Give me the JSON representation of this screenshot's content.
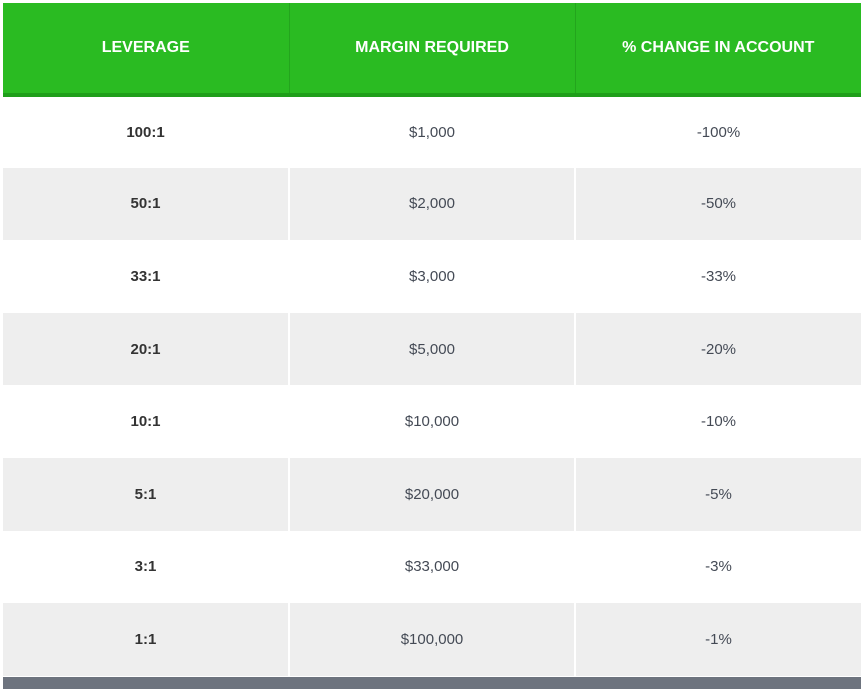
{
  "table": {
    "headers": [
      "LEVERAGE",
      "MARGIN REQUIRED",
      "% CHANGE IN ACCOUNT"
    ],
    "rows": [
      {
        "leverage": "100:1",
        "margin": "$1,000",
        "change": "-100%"
      },
      {
        "leverage": "50:1",
        "margin": "$2,000",
        "change": "-50%"
      },
      {
        "leverage": "33:1",
        "margin": "$3,000",
        "change": "-33%"
      },
      {
        "leverage": "20:1",
        "margin": "$5,000",
        "change": "-20%"
      },
      {
        "leverage": "10:1",
        "margin": "$10,000",
        "change": "-10%"
      },
      {
        "leverage": "5:1",
        "margin": "$20,000",
        "change": "-5%"
      },
      {
        "leverage": "3:1",
        "margin": "$33,000",
        "change": "-3%"
      },
      {
        "leverage": "1:1",
        "margin": "$100,000",
        "change": "-1%"
      }
    ]
  },
  "colors": {
    "header_bg": "#2abb22",
    "row_alt_bg": "#eeeeee",
    "footer_bar": "#6d737e"
  }
}
